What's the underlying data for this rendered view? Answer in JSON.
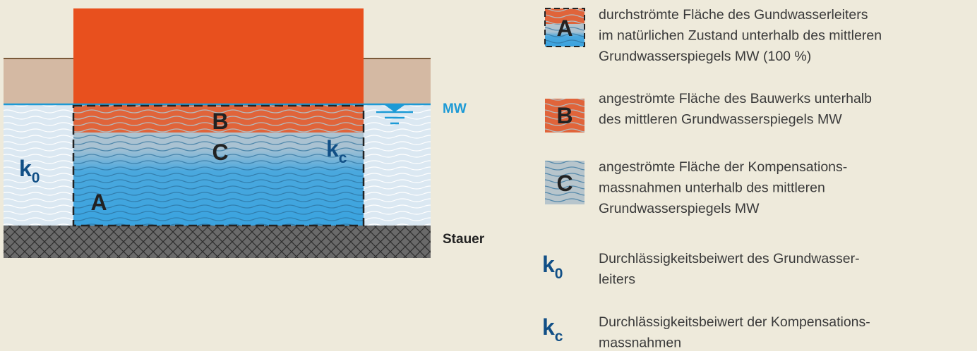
{
  "diagram": {
    "labels": {
      "mw": "MW",
      "stauer": "Stauer",
      "a": "A",
      "b": "B",
      "c": "C",
      "k0": {
        "base": "k",
        "sub": "0"
      },
      "kc": {
        "base": "k",
        "sub": "c"
      }
    }
  },
  "legend": [
    {
      "symbol": "A",
      "lines": [
        "durchströmte Fläche des Gundwasserleiters",
        "im natürlichen Zustand unterhalb des mittleren",
        "Grundwasserspiegels MW (100 %)"
      ]
    },
    {
      "symbol": "B",
      "lines": [
        "angeströmte Fläche des Bauwerks unterhalb",
        "des mittleren Grundwasserspiegels MW"
      ]
    },
    {
      "symbol": "C",
      "lines": [
        "angeströmte Fläche der Kompensations-",
        "massnahmen unterhalb des mittleren",
        "Grundwasserspiegels MW"
      ]
    },
    {
      "symbol": {
        "base": "k",
        "sub": "0"
      },
      "lines": [
        "Durchlässigkeitsbeiwert des Grundwasser-",
        "leiters"
      ]
    },
    {
      "symbol": {
        "base": "k",
        "sub": "c"
      },
      "lines": [
        "Durchlässigkeitsbeiwert der Kompensations-",
        "massnahmen"
      ]
    }
  ]
}
